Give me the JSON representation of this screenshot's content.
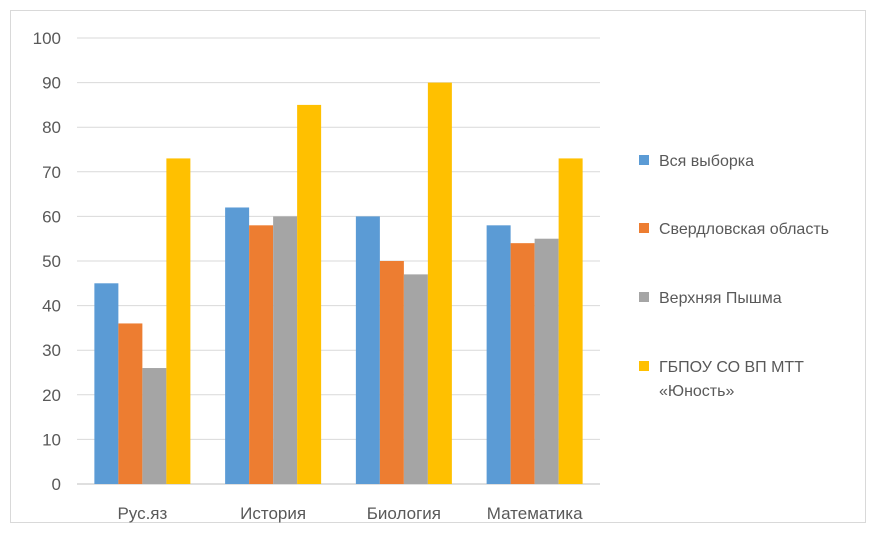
{
  "chart_data": {
    "type": "bar",
    "categories": [
      "Рус.яз",
      "История",
      "Биология",
      "Математика"
    ],
    "series": [
      {
        "name": "Вся выборка",
        "values": [
          45,
          62,
          60,
          58
        ],
        "color": "#5B9BD5"
      },
      {
        "name": "Свердловская область",
        "values": [
          36,
          58,
          50,
          54
        ],
        "color": "#ED7D31"
      },
      {
        "name": "Верхняя Пышма",
        "values": [
          26,
          60,
          47,
          55
        ],
        "color": "#A5A5A5"
      },
      {
        "name": "ГБПОУ СО ВП МТТ «Юность»",
        "values": [
          73,
          85,
          90,
          73
        ],
        "color": "#FFC000"
      }
    ],
    "ylim": [
      0,
      100
    ],
    "yticks": [
      0,
      10,
      20,
      30,
      40,
      50,
      60,
      70,
      80,
      90,
      100
    ],
    "grid": true,
    "legend_position": "right",
    "title": "",
    "xlabel": "",
    "ylabel": ""
  }
}
